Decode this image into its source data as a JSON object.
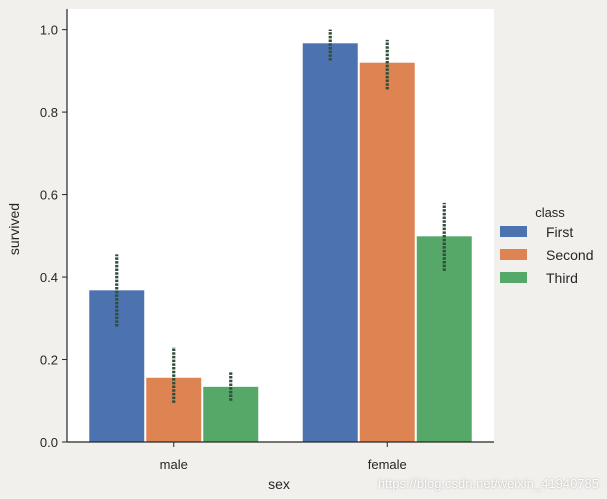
{
  "chart_data": {
    "type": "bar",
    "categories": [
      "male",
      "female"
    ],
    "series": [
      {
        "name": "First",
        "values": [
          0.369,
          0.968
        ],
        "ci": [
          [
            0.28,
            0.455
          ],
          [
            0.925,
            1.0
          ]
        ],
        "color": "#4c72b0"
      },
      {
        "name": "Second",
        "values": [
          0.157,
          0.921
        ],
        "ci": [
          [
            0.095,
            0.23
          ],
          [
            0.855,
            0.975
          ]
        ],
        "color": "#dd8452"
      },
      {
        "name": "Third",
        "values": [
          0.135,
          0.5
        ],
        "ci": [
          [
            0.1,
            0.17
          ],
          [
            0.415,
            0.58
          ]
        ],
        "color": "#55a868"
      }
    ],
    "title": "",
    "xlabel": "sex",
    "ylabel": "survived",
    "ylim": [
      0,
      1.05
    ],
    "yticks": [
      "0.0",
      "0.2",
      "0.4",
      "0.6",
      "0.8",
      "1.0"
    ],
    "ytick_values": [
      0,
      0.2,
      0.4,
      0.6,
      0.8,
      1.0
    ],
    "legend_title": "class",
    "legend_position": "center-right",
    "errorbar_color": "#2f4f3a",
    "grid": false
  },
  "watermark": "https://blog.csdn.net/weixin_41940785"
}
